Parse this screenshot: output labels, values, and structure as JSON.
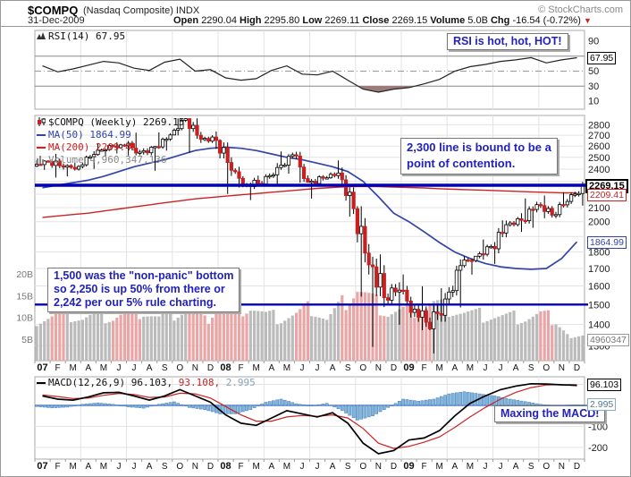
{
  "header": {
    "symbol": "$COMPQ",
    "symbol_desc": "(Nasdaq Composite) INDX",
    "credit": "© StockCharts.com",
    "date": "31-Dec-2009",
    "open_label": "Open",
    "open": "2290.04",
    "high_label": "High",
    "high": "2295.80",
    "low_label": "Low",
    "low": "2269.11",
    "close_label": "Close",
    "close": "2269.15",
    "volume_label": "Volume",
    "volume": "5.0B",
    "chg_label": "Chg",
    "chg": "-16.54 (-0.72%)",
    "chg_arrow": "▼"
  },
  "legends": {
    "rsi": "RSI(14) 67.95",
    "price": "$COMPQ (Weekly) 2269.15",
    "ma50": "MA(50) 1864.99",
    "ma200": "MA(200) 2209.41",
    "volume": "Volume 4,960,347,136",
    "macd": "MACD(12,26,9) 96.103,",
    "macd_signal": "93.108,",
    "macd_hist": "2.995"
  },
  "annotations": {
    "rsi_note": "RSI is hot, hot, HOT!",
    "price_note_line1": "2,300 line is bound to be a",
    "price_note_line2": "point of contention.",
    "bottom_note_line1": "1,500 was the \"non-panic\" bottom",
    "bottom_note_line2": "so 2,250 is up 50% from there or",
    "bottom_note_line3": "2,242 per our 5% rule charting.",
    "macd_note": "Maxing the MACD!"
  },
  "callouts": {
    "rsi": "67.95",
    "close": "2269.15",
    "ma200": "2209.41",
    "ma50": "1864.99",
    "volume": "4960347",
    "macd": "96.103",
    "hist": "2.995"
  },
  "colors": {
    "annotation_blue": "#2222BB",
    "annotation_line_blue": "#0000BB",
    "ma50_blue": "#3344AA",
    "ma200_red": "#CC2222",
    "candle_down_red": "#C82020",
    "volume_up_gray": "#BBBBBB",
    "volume_down_pink": "#E9A6A6",
    "macd_hist_blue": "#80B4DE",
    "rsi_oversold_fill": "#9E7B7B",
    "grid_gray": "#E3E3E3",
    "chg_red": "#CC2222"
  },
  "chart_data": [
    {
      "type": "line",
      "panel": "rsi",
      "title": "RSI(14)",
      "last": 67.95,
      "ylim": [
        0,
        100
      ],
      "yticks": [
        90,
        50,
        30,
        10
      ],
      "overbought": 70,
      "midline": 50,
      "oversold": 30,
      "values": [
        57,
        49,
        53,
        58,
        63,
        61,
        54,
        51,
        62,
        66,
        50,
        52,
        41,
        38,
        40,
        51,
        57,
        46,
        45,
        50,
        38,
        26,
        22,
        26,
        28,
        33,
        39,
        50,
        56,
        59,
        63,
        65,
        68,
        61,
        65,
        67.95
      ]
    },
    {
      "type": "candlestick",
      "panel": "price",
      "title": "$COMPQ (Weekly)",
      "last": 2269.15,
      "log_scale": true,
      "ylim": [
        1250,
        2900
      ],
      "yticks": [
        2800,
        2700,
        2600,
        2500,
        2400,
        2100,
        2000,
        1800,
        1700,
        1600,
        1500,
        1400,
        1300
      ],
      "categories": [
        "07",
        "F",
        "M",
        "A",
        "M",
        "J",
        "J",
        "A",
        "S",
        "O",
        "N",
        "D",
        "08",
        "F",
        "M",
        "A",
        "M",
        "J",
        "J",
        "A",
        "S",
        "O",
        "N",
        "D",
        "09",
        "F",
        "M",
        "A",
        "M",
        "J",
        "J",
        "A",
        "S",
        "O",
        "N",
        "D"
      ],
      "year_label_indices": [
        0,
        12,
        24
      ],
      "open": [
        2425,
        2464,
        2416,
        2422,
        2525,
        2605,
        2603,
        2546,
        2596,
        2702,
        2859,
        2661,
        2652,
        2390,
        2271,
        2279,
        2413,
        2523,
        2293,
        2326,
        2368,
        2092,
        1721,
        1536,
        1577,
        1476,
        1378,
        1529,
        1717,
        1774,
        1835,
        1979,
        2009,
        2122,
        2045,
        2145
      ],
      "high": [
        2475,
        2531,
        2455,
        2554,
        2627,
        2634,
        2724,
        2600,
        2727,
        2862,
        2862,
        2735,
        2661,
        2419,
        2346,
        2451,
        2551,
        2549,
        2350,
        2473,
        2413,
        2110,
        1785,
        1620,
        1665,
        1598,
        1587,
        1754,
        1774,
        1880,
        2009,
        2060,
        2168,
        2190,
        2214,
        2296
      ],
      "low": [
        2394,
        2331,
        2340,
        2402,
        2510,
        2534,
        2517,
        2387,
        2559,
        2698,
        2540,
        2574,
        2202,
        2252,
        2155,
        2266,
        2362,
        2290,
        2167,
        2321,
        2035,
        1542,
        1295,
        1398,
        1434,
        1372,
        1266,
        1485,
        1664,
        1753,
        1727,
        1930,
        1958,
        2024,
        2024,
        2114
      ],
      "close": [
        2464,
        2416,
        2422,
        2525,
        2605,
        2603,
        2546,
        2596,
        2702,
        2859,
        2661,
        2652,
        2390,
        2271,
        2279,
        2413,
        2523,
        2293,
        2326,
        2368,
        2092,
        1721,
        1536,
        1577,
        1476,
        1378,
        1529,
        1717,
        1774,
        1835,
        1979,
        2009,
        2122,
        2045,
        2145,
        2269.15
      ],
      "ma50": [
        2250,
        2270,
        2290,
        2310,
        2340,
        2380,
        2420,
        2450,
        2480,
        2520,
        2560,
        2580,
        2590,
        2580,
        2560,
        2530,
        2500,
        2480,
        2450,
        2420,
        2380,
        2300,
        2180,
        2060,
        2000,
        1930,
        1860,
        1800,
        1760,
        1730,
        1710,
        1700,
        1695,
        1700,
        1760,
        1864.99
      ],
      "ma200": [
        2030,
        2040,
        2050,
        2060,
        2075,
        2090,
        2105,
        2120,
        2135,
        2150,
        2165,
        2175,
        2185,
        2195,
        2205,
        2215,
        2225,
        2235,
        2245,
        2252,
        2258,
        2260,
        2258,
        2255,
        2252,
        2248,
        2242,
        2238,
        2234,
        2230,
        2226,
        2222,
        2218,
        2214,
        2211,
        2209.41
      ],
      "ma50_last": 1864.99,
      "ma200_last": 2209.41,
      "volume_billions": [
        9.5,
        10.2,
        10.8,
        9.8,
        10.5,
        10.0,
        11.2,
        11.5,
        9.8,
        11.0,
        12.0,
        9.0,
        13.5,
        11.8,
        12.5,
        10.4,
        9.8,
        10.6,
        12.2,
        9.4,
        13.0,
        16.5,
        13.8,
        11.0,
        11.5,
        11.8,
        13.2,
        12.0,
        11.0,
        10.5,
        10.2,
        10.0,
        9.8,
        10.5,
        9.5,
        5.0
      ],
      "volume_last": 4960347136,
      "volume_yticks": [
        {
          "v": 20,
          "label": "20B"
        },
        {
          "v": 15,
          "label": "15B"
        },
        {
          "v": 10,
          "label": "10B"
        },
        {
          "v": 5,
          "label": "5B"
        }
      ],
      "annotation_hlines": [
        2269.15,
        1500
      ]
    },
    {
      "type": "macd",
      "panel": "macd",
      "title": "MACD(12,26,9)",
      "macd_last": 96.103,
      "signal_last": 93.108,
      "hist_last": 2.995,
      "ylim": [
        -255,
        135
      ],
      "yticks": [
        -100,
        -200
      ],
      "macd": [
        45,
        30,
        25,
        40,
        60,
        62,
        45,
        25,
        45,
        75,
        45,
        15,
        -45,
        -85,
        -95,
        -60,
        -25,
        -40,
        -55,
        -35,
        -85,
        -180,
        -230,
        -215,
        -165,
        -155,
        -120,
        -50,
        10,
        45,
        75,
        92,
        103,
        102,
        98,
        96.103
      ],
      "signal": [
        50,
        42,
        33,
        35,
        48,
        57,
        52,
        38,
        40,
        58,
        55,
        35,
        -5,
        -45,
        -75,
        -75,
        -55,
        -48,
        -52,
        -45,
        -60,
        -110,
        -180,
        -205,
        -195,
        -175,
        -150,
        -105,
        -55,
        -10,
        30,
        62,
        85,
        97,
        99,
        93.108
      ],
      "hist": [
        -5,
        -12,
        -8,
        5,
        12,
        5,
        -7,
        -13,
        5,
        17,
        -10,
        -20,
        -40,
        -40,
        -20,
        15,
        30,
        8,
        -3,
        10,
        -25,
        -70,
        -50,
        -10,
        30,
        20,
        30,
        55,
        65,
        55,
        45,
        30,
        18,
        5,
        -1,
        2.995
      ]
    }
  ]
}
